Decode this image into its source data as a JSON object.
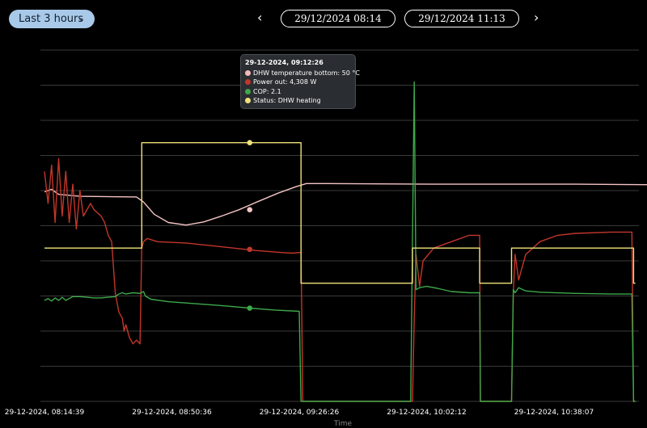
{
  "toolbar": {
    "range_label": "Last 3 hours",
    "start_date": "29/12/2024 08:14",
    "end_date": "29/12/2024 11:13",
    "prev_symbol": "‹",
    "next_symbol": "›",
    "chevron_symbol": "⌄"
  },
  "tooltip": {
    "title": "29-12-2024, 09:12:26",
    "rows": [
      {
        "label": "DHW temperature bottom: 50 °C",
        "color": "#f5b9b9"
      },
      {
        "label": "Power out: 4,308 W",
        "color": "#c2362b"
      },
      {
        "label": "COP: 2.1",
        "color": "#3ea84a"
      },
      {
        "label": "Status: DHW heating",
        "color": "#efe27a"
      }
    ]
  },
  "chart_data": {
    "type": "line",
    "title": "",
    "xlabel": "Time",
    "ylabel": "",
    "x_unit": "minutes from 08:14:39",
    "x_ticks": [
      {
        "t": 0,
        "label": "29-12-2024, 08:14:39"
      },
      {
        "t": 36,
        "label": "29-12-2024, 08:50:36"
      },
      {
        "t": 72,
        "label": "29-12-2024, 09:26:26"
      },
      {
        "t": 108,
        "label": "29-12-2024, 10:02:12"
      },
      {
        "t": 144,
        "label": "29-12-2024, 10:38:07"
      }
    ],
    "hover_t": 58,
    "grid": true,
    "series": [
      {
        "name": "DHW temperature bottom",
        "color": "#f5c4c4",
        "marker_y": 50,
        "points": [
          [
            0,
            52.8
          ],
          [
            2,
            53.2
          ],
          [
            4,
            52.4
          ],
          [
            10,
            52.1
          ],
          [
            26,
            52.0
          ],
          [
            28,
            51.2
          ],
          [
            31,
            49.3
          ],
          [
            35,
            48.0
          ],
          [
            40,
            47.6
          ],
          [
            45,
            48.1
          ],
          [
            50,
            49.0
          ],
          [
            55,
            50.0
          ],
          [
            60,
            51.2
          ],
          [
            66,
            52.6
          ],
          [
            71,
            53.6
          ],
          [
            74,
            54.1
          ],
          [
            80,
            54.1
          ],
          [
            110,
            54.0
          ],
          [
            150,
            54.0
          ],
          [
            180,
            53.9
          ]
        ]
      },
      {
        "name": "Power out",
        "color": "#c2362b",
        "marker_y": 43.8,
        "points": [
          [
            0,
            56
          ],
          [
            1,
            51
          ],
          [
            2,
            57
          ],
          [
            3,
            48
          ],
          [
            4,
            58
          ],
          [
            5,
            49
          ],
          [
            6,
            56
          ],
          [
            7,
            48
          ],
          [
            8,
            54
          ],
          [
            9,
            47
          ],
          [
            10,
            53
          ],
          [
            11,
            49
          ],
          [
            13,
            51
          ],
          [
            14,
            50
          ],
          [
            16,
            49
          ],
          [
            17,
            48
          ],
          [
            18,
            46
          ],
          [
            19,
            45
          ],
          [
            20,
            37
          ],
          [
            21,
            34
          ],
          [
            22,
            33
          ],
          [
            22.5,
            31
          ],
          [
            23,
            32
          ],
          [
            24,
            30
          ],
          [
            25,
            29
          ],
          [
            26,
            29.6
          ],
          [
            27,
            29
          ],
          [
            27.5,
            44
          ],
          [
            28,
            45
          ],
          [
            29,
            45.5
          ],
          [
            32,
            45
          ],
          [
            40,
            44.8
          ],
          [
            50,
            44.2
          ],
          [
            60,
            43.6
          ],
          [
            67,
            43.3
          ],
          [
            70,
            43.2
          ],
          [
            72,
            43.3
          ],
          [
            72.5,
            43.3
          ],
          [
            73,
            20
          ],
          [
            104,
            20
          ],
          [
            104.5,
            33
          ],
          [
            105,
            43
          ],
          [
            106,
            38
          ],
          [
            107,
            42
          ],
          [
            110,
            44
          ],
          [
            115,
            45
          ],
          [
            120,
            46
          ],
          [
            123,
            46
          ],
          [
            123.2,
            20
          ],
          [
            132,
            20
          ],
          [
            132.5,
            37
          ],
          [
            133,
            43
          ],
          [
            134,
            39
          ],
          [
            136,
            43
          ],
          [
            140,
            45
          ],
          [
            145,
            46
          ],
          [
            150,
            46.3
          ],
          [
            160,
            46.5
          ],
          [
            165,
            46.5
          ],
          [
            166,
            46.5
          ],
          [
            166.5,
            20
          ],
          [
            167,
            20
          ]
        ]
      },
      {
        "name": "COP",
        "color": "#3ea84a",
        "marker_y": 34.6,
        "points": [
          [
            0,
            35.8
          ],
          [
            1,
            36.1
          ],
          [
            2,
            35.7
          ],
          [
            3,
            36.2
          ],
          [
            4,
            35.8
          ],
          [
            5,
            36.3
          ],
          [
            6,
            35.8
          ],
          [
            8,
            36.4
          ],
          [
            10,
            36.4
          ],
          [
            12,
            36.3
          ],
          [
            14,
            36.2
          ],
          [
            16,
            36.2
          ],
          [
            18,
            36.3
          ],
          [
            20,
            36.4
          ],
          [
            21,
            36.8
          ],
          [
            22,
            37.0
          ],
          [
            23,
            36.8
          ],
          [
            25,
            37.0
          ],
          [
            27,
            36.9
          ],
          [
            28,
            37.2
          ],
          [
            28.5,
            36.5
          ],
          [
            30,
            36.0
          ],
          [
            35,
            35.6
          ],
          [
            40,
            35.4
          ],
          [
            50,
            35.0
          ],
          [
            58,
            34.6
          ],
          [
            65,
            34.3
          ],
          [
            72,
            34.1
          ],
          [
            72.5,
            20
          ],
          [
            103.5,
            20
          ],
          [
            104.5,
            70
          ],
          [
            105,
            37.5
          ],
          [
            106,
            37.8
          ],
          [
            108,
            38.0
          ],
          [
            111,
            37.7
          ],
          [
            115,
            37.2
          ],
          [
            120,
            37
          ],
          [
            123,
            37
          ],
          [
            123.2,
            20
          ],
          [
            132,
            20
          ],
          [
            132.5,
            37.5
          ],
          [
            133,
            37
          ],
          [
            134,
            37.8
          ],
          [
            136,
            37.3
          ],
          [
            140,
            37.1
          ],
          [
            150,
            36.9
          ],
          [
            160,
            36.8
          ],
          [
            166,
            36.8
          ],
          [
            166.5,
            20
          ],
          [
            167,
            20
          ]
        ]
      },
      {
        "name": "Status",
        "color": "#efe27a",
        "marker_y": 60.5,
        "points": [
          [
            0,
            44
          ],
          [
            27.5,
            44
          ],
          [
            27.5,
            60.5
          ],
          [
            72.5,
            60.5
          ],
          [
            72.5,
            38.5
          ],
          [
            104,
            38.5
          ],
          [
            104,
            44
          ],
          [
            123,
            44
          ],
          [
            123,
            38.5
          ],
          [
            132,
            38.5
          ],
          [
            132,
            44
          ],
          [
            166.5,
            44
          ],
          [
            166.5,
            38.5
          ],
          [
            167,
            38.5
          ]
        ]
      }
    ]
  }
}
